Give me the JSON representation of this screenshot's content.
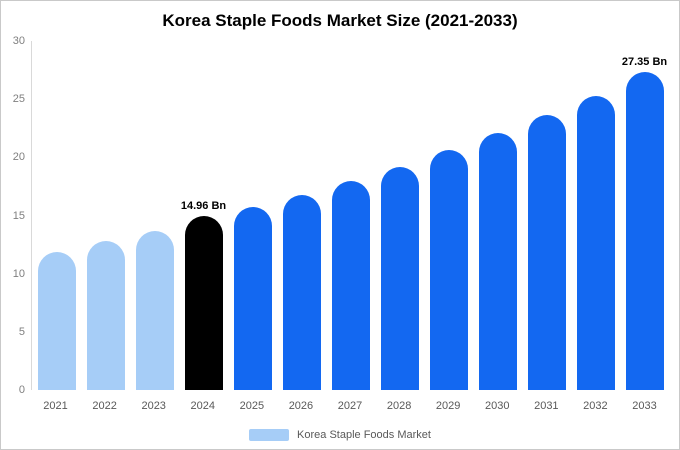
{
  "title": "Korea Staple Foods Market Size (2021-2033)",
  "legend": {
    "label": "Korea Staple Foods Market",
    "swatch_color": "#a6cdf7"
  },
  "colors": {
    "past": "#a6cdf7",
    "current": "#000000",
    "forecast": "#1368f1"
  },
  "chart_data": {
    "type": "bar",
    "title": "Korea Staple Foods Market Size (2021-2033)",
    "xlabel": "",
    "ylabel": "",
    "categories": [
      "2021",
      "2022",
      "2023",
      "2024",
      "2025",
      "2026",
      "2027",
      "2028",
      "2029",
      "2030",
      "2031",
      "2032",
      "2033"
    ],
    "values": [
      11.9,
      12.8,
      13.7,
      14.96,
      15.7,
      16.8,
      18.0,
      19.2,
      20.6,
      22.1,
      23.6,
      25.3,
      27.35
    ],
    "bar_roles": [
      "past",
      "past",
      "past",
      "current",
      "forecast",
      "forecast",
      "forecast",
      "forecast",
      "forecast",
      "forecast",
      "forecast",
      "forecast",
      "forecast"
    ],
    "annotations": [
      {
        "category": "2024",
        "text": "14.96 Bn"
      },
      {
        "category": "2033",
        "text": "27.35 Bn"
      }
    ],
    "ylim": [
      0,
      30
    ],
    "yticks": [
      0,
      5,
      10,
      15,
      20,
      25,
      30
    ],
    "grid": false,
    "legend_position": "bottom",
    "legend_entries": [
      "Korea Staple Foods Market"
    ]
  }
}
